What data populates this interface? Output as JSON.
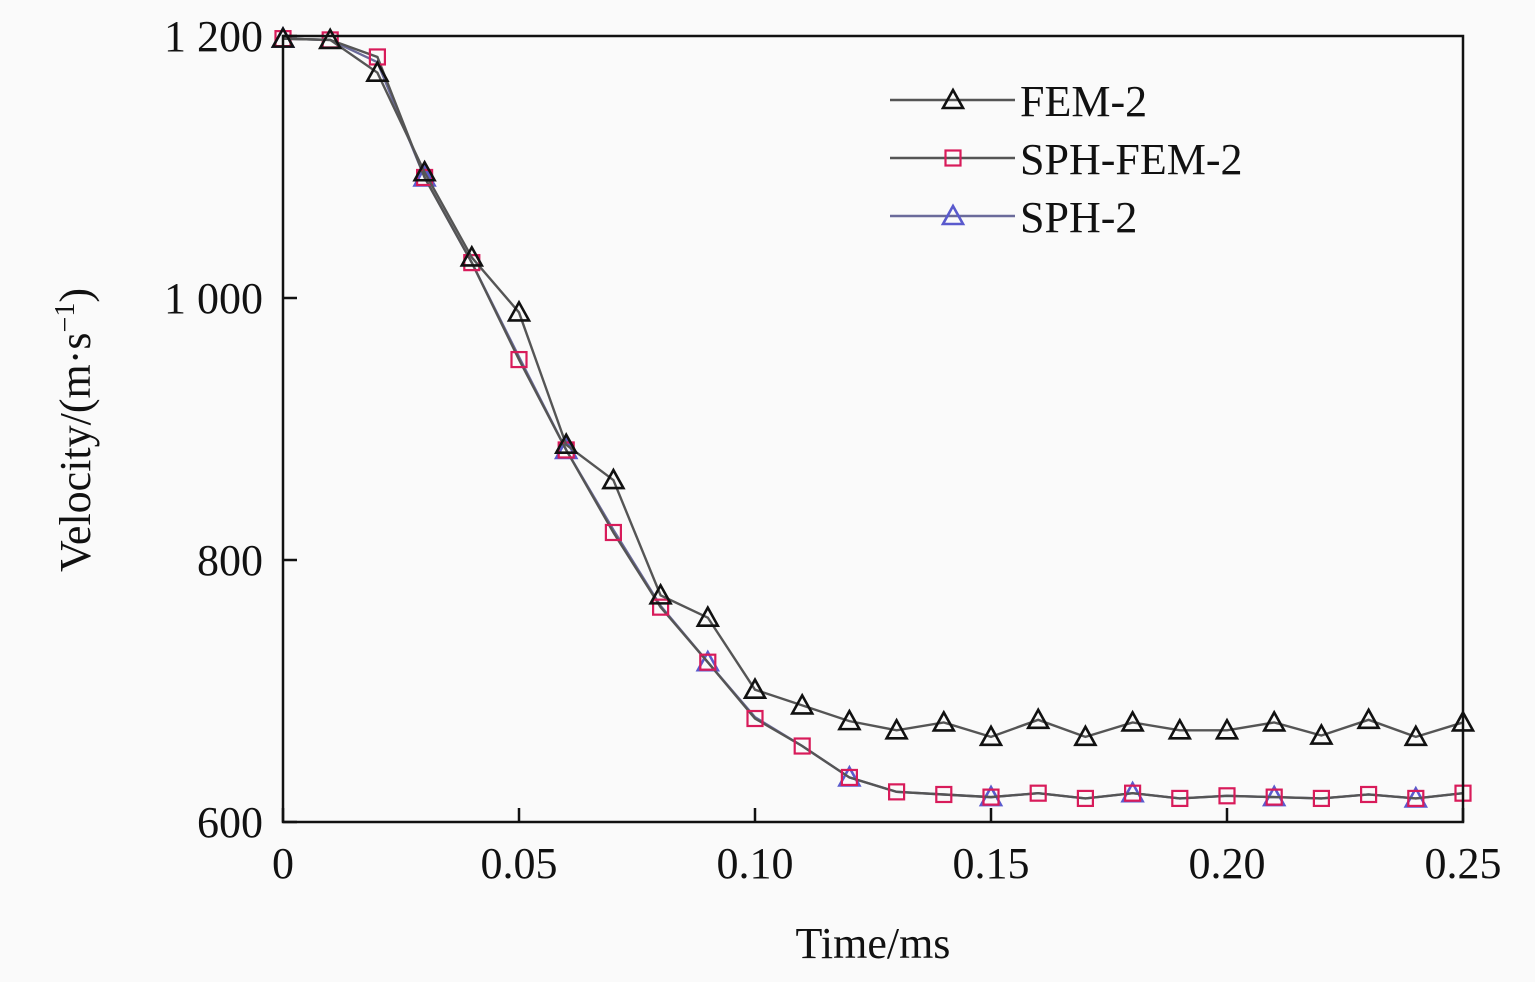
{
  "chart_data": {
    "type": "line",
    "title": "",
    "xlabel": "Time/ms",
    "ylabel": "Velocity/(m·s",
    "ylabel_sup": "−1",
    "ylabel_close": ")",
    "xlim": [
      0,
      0.25
    ],
    "ylim": [
      600,
      1200
    ],
    "xticks": [
      0,
      0.05,
      0.1,
      0.15,
      0.2,
      0.25
    ],
    "xtick_labels": [
      "0",
      "0.05",
      "0.10",
      "0.15",
      "0.20",
      "0.25"
    ],
    "yticks": [
      600,
      800,
      1000,
      1200
    ],
    "ytick_labels": [
      "600",
      "800",
      "1 000",
      "1 200"
    ],
    "grid": false,
    "legend_position": "top-right",
    "x": [
      0,
      0.01,
      0.02,
      0.03,
      0.04,
      0.05,
      0.06,
      0.07,
      0.08,
      0.09,
      0.1,
      0.11,
      0.12,
      0.13,
      0.14,
      0.15,
      0.16,
      0.17,
      0.18,
      0.19,
      0.2,
      0.21,
      0.22,
      0.23,
      0.24,
      0.25
    ],
    "series": [
      {
        "name": "FEM-2",
        "marker": "triangle",
        "color": "#111111",
        "marker_every": 1,
        "values": [
          1198,
          1197,
          1172,
          1096,
          1031,
          989,
          888,
          861,
          773,
          756,
          701,
          689,
          677,
          670,
          676,
          665,
          678,
          665,
          676,
          670,
          670,
          676,
          666,
          678,
          665,
          676
        ]
      },
      {
        "name": "SPH-FEM-2",
        "marker": "square",
        "color": "#d81b5a",
        "marker_every": 1,
        "values": [
          1198,
          1197,
          1184,
          1092,
          1027,
          953,
          884,
          821,
          764,
          722,
          679,
          658,
          634,
          623,
          621,
          619,
          622,
          618,
          622,
          618,
          620,
          619,
          618,
          621,
          618,
          622
        ]
      },
      {
        "name": "SPH-2",
        "marker": "triangle",
        "color": "#5a5acd",
        "marker_every": 3,
        "values": [
          1198,
          1197,
          1180,
          1092,
          1027,
          955,
          884,
          823,
          765,
          722,
          680,
          658,
          634,
          623,
          621,
          619,
          622,
          618,
          622,
          618,
          620,
          619,
          618,
          621,
          618,
          622
        ]
      }
    ]
  }
}
